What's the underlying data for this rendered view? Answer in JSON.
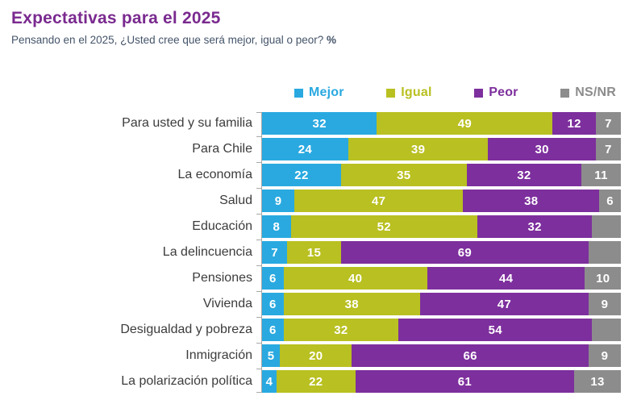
{
  "header": {
    "title": "Expectativas para el 2025",
    "subtitle": "Pensando en el 2025, ¿Usted cree que será mejor, igual o peor?",
    "subtitle_unit": "%"
  },
  "colors": {
    "title": "#7A2A8F",
    "subtitle": "#44546A",
    "axis": "#A8A8A8",
    "mejor": "#29A9E0",
    "igual": "#B9C021",
    "peor": "#7D2F9D",
    "nsnr": "#8C8C8C"
  },
  "legend": [
    {
      "label": "Mejor",
      "color": "#29A9E0"
    },
    {
      "label": "Igual",
      "color": "#B9C021"
    },
    {
      "label": "Peor",
      "color": "#7D2F9D"
    },
    {
      "label": "NS/NR",
      "color": "#8C8C8C"
    }
  ],
  "chart_data": {
    "type": "bar",
    "orientation": "horizontal",
    "stacked": true,
    "unit": "%",
    "xlim": [
      0,
      100
    ],
    "grid": false,
    "legend_position": "top",
    "value_labels": "inside, white, bold",
    "categories": [
      "Para usted y su familia",
      "Para Chile",
      "La economía",
      "Salud",
      "Educación",
      "La delincuencia",
      "Pensiones",
      "Vivienda",
      "Desigualdad y pobreza",
      "Inmigración",
      "La polarización política"
    ],
    "series": [
      {
        "name": "Mejor",
        "color": "#29A9E0",
        "values": [
          32,
          24,
          22,
          9,
          8,
          7,
          6,
          6,
          6,
          5,
          4
        ],
        "unlabeled_indices": []
      },
      {
        "name": "Igual",
        "color": "#B9C021",
        "values": [
          49,
          39,
          35,
          47,
          52,
          15,
          40,
          38,
          32,
          20,
          22
        ],
        "unlabeled_indices": []
      },
      {
        "name": "Peor",
        "color": "#7D2F9D",
        "values": [
          12,
          30,
          32,
          38,
          32,
          69,
          44,
          47,
          54,
          66,
          61
        ],
        "unlabeled_indices": []
      },
      {
        "name": "NS/NR",
        "color": "#8C8C8C",
        "values": [
          7,
          7,
          11,
          6,
          8,
          9,
          10,
          9,
          8,
          9,
          13
        ],
        "unlabeled_indices": [
          4,
          5,
          8
        ]
      }
    ]
  }
}
